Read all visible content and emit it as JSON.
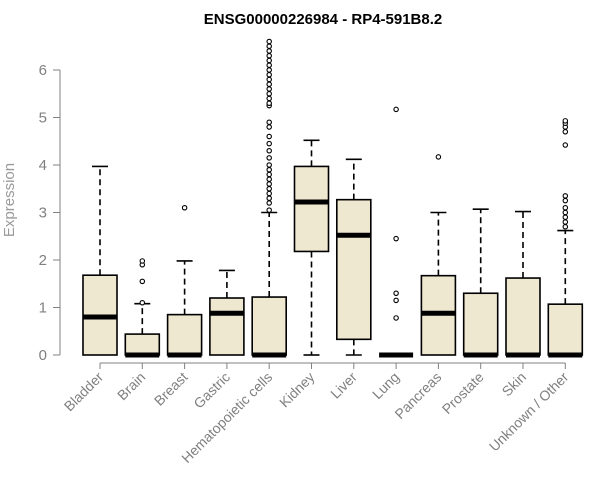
{
  "chart_data": {
    "type": "boxplot",
    "title": "ENSG00000226984 - RP4-591B8.2",
    "ylabel": "Expression",
    "xlabel": "",
    "ylim": [
      0,
      6.6
    ],
    "yticks": [
      0,
      1,
      2,
      3,
      4,
      5,
      6
    ],
    "colors": {
      "box_fill": "#efe8d0",
      "box_stroke": "#000000",
      "axis": "#808080"
    },
    "categories": [
      "Bladder",
      "Brain",
      "Breast",
      "Gastric",
      "Hematopoietic cells",
      "Kidney",
      "Liver",
      "Lung",
      "Pancreas",
      "Prostate",
      "Skin",
      "Unknown / Other"
    ],
    "boxes": [
      {
        "q1": 0,
        "median": 0.8,
        "q3": 1.68,
        "whisker_low": 0,
        "whisker_high": 3.97,
        "outliers": []
      },
      {
        "q1": 0,
        "median": 0,
        "q3": 0.44,
        "whisker_low": 0,
        "whisker_high": 1.08,
        "outliers": [
          1.1,
          1.55,
          1.9,
          1.98
        ]
      },
      {
        "q1": 0,
        "median": 0,
        "q3": 0.85,
        "whisker_low": 0,
        "whisker_high": 1.98,
        "outliers": [
          3.1
        ]
      },
      {
        "q1": 0,
        "median": 0.88,
        "q3": 1.2,
        "whisker_low": 0,
        "whisker_high": 1.78,
        "outliers": []
      },
      {
        "q1": 0,
        "median": 0,
        "q3": 1.22,
        "whisker_low": 0,
        "whisker_high": 3.0,
        "outliers": [
          3.05,
          3.2,
          3.3,
          3.4,
          3.5,
          3.6,
          3.7,
          3.8,
          3.9,
          4.0,
          4.15,
          4.3,
          4.45,
          4.6,
          4.8,
          4.9,
          5.25,
          5.3,
          5.4,
          5.5,
          5.6,
          5.7,
          5.8,
          5.9,
          6.0,
          6.1,
          6.2,
          6.3,
          6.4,
          6.5,
          6.6
        ]
      },
      {
        "q1": 2.18,
        "median": 3.22,
        "q3": 3.97,
        "whisker_low": 0,
        "whisker_high": 4.52,
        "outliers": []
      },
      {
        "q1": 0.33,
        "median": 2.52,
        "q3": 3.27,
        "whisker_low": 0,
        "whisker_high": 4.12,
        "outliers": []
      },
      {
        "q1": 0,
        "median": 0,
        "q3": 0,
        "whisker_low": 0,
        "whisker_high": 0,
        "outliers": [
          0.78,
          1.15,
          1.3,
          2.45,
          5.17
        ]
      },
      {
        "q1": 0,
        "median": 0.88,
        "q3": 1.67,
        "whisker_low": 0,
        "whisker_high": 3.0,
        "outliers": [
          4.17
        ]
      },
      {
        "q1": 0,
        "median": 0,
        "q3": 1.3,
        "whisker_low": 0,
        "whisker_high": 3.07,
        "outliers": []
      },
      {
        "q1": 0,
        "median": 0,
        "q3": 1.62,
        "whisker_low": 0,
        "whisker_high": 3.02,
        "outliers": []
      },
      {
        "q1": 0,
        "median": 0,
        "q3": 1.07,
        "whisker_low": 0,
        "whisker_high": 2.62,
        "outliers": [
          2.7,
          2.8,
          2.9,
          3.0,
          3.1,
          3.25,
          3.35,
          4.42,
          4.7,
          4.8,
          4.88,
          4.93
        ]
      }
    ]
  }
}
